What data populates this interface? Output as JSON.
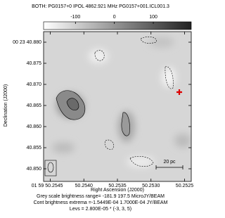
{
  "chart_data": {
    "type": "contour",
    "title": "BOTH: PG0157+0  IPOL  4862.921 MHz  PG0157+001.ICL001.3",
    "x_label": "Right Ascension (J2000)",
    "y_label": "Declination (J2000)",
    "xlim": [
      50.2546,
      50.2524
    ],
    "xticks": [
      {
        "value": 50.2545,
        "label": "01 59 50.2545"
      },
      {
        "value": 50.254,
        "label": "50.2540"
      },
      {
        "value": 50.2535,
        "label": "50.2535"
      },
      {
        "value": 50.253,
        "label": "50.2530"
      },
      {
        "value": 50.2525,
        "label": "50.2525"
      }
    ],
    "ylim": [
      40.847,
      40.8825
    ],
    "yticks": [
      {
        "value": 40.88,
        "label": "00 23 40.880"
      },
      {
        "value": 40.875,
        "label": "40.875"
      },
      {
        "value": 40.87,
        "label": "40.870"
      },
      {
        "value": 40.865,
        "label": "40.865"
      },
      {
        "value": 40.86,
        "label": "40.860"
      },
      {
        "value": 40.855,
        "label": "40.855"
      },
      {
        "value": 40.85,
        "label": "40.850"
      }
    ],
    "colorbar": {
      "lim": [
        -181.9,
        197.5
      ],
      "ticks": [
        -100,
        0,
        100
      ]
    },
    "scale_bar": "20 pc",
    "notes": [
      "Grey scale brightness range= -181.9 197.5 MicroJY/BEAM",
      "Cont brightness extrema =-1.5449E-04 1.7000E-04 JY/BEAM",
      "Levs = 2.800E-05 * (-3, 3, 5)"
    ]
  }
}
